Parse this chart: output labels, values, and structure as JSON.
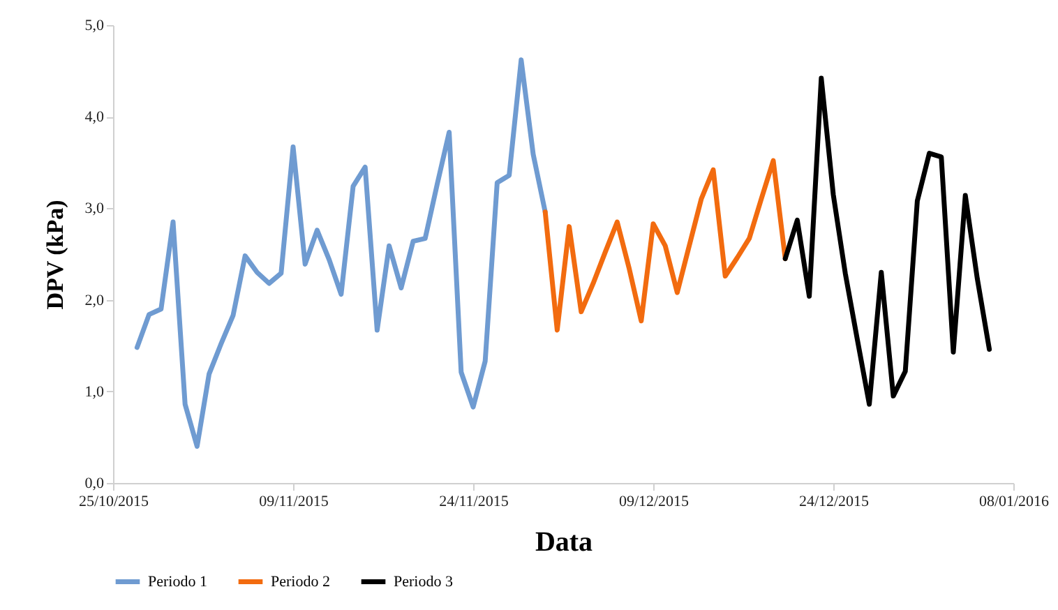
{
  "chart_data": {
    "type": "line",
    "xlabel": "Data",
    "ylabel": "DPV (kPa)",
    "xlim": [
      "2015-10-25",
      "2016-01-08"
    ],
    "xticks": [
      {
        "value": "2015-10-25",
        "label": "25/10/2015"
      },
      {
        "value": "2015-11-09",
        "label": "09/11/2015"
      },
      {
        "value": "2015-11-24",
        "label": "24/11/2015"
      },
      {
        "value": "2015-12-09",
        "label": "09/12/2015"
      },
      {
        "value": "2015-12-24",
        "label": "24/12/2015"
      },
      {
        "value": "2016-01-08",
        "label": "08/01/2016"
      }
    ],
    "ylim": [
      0,
      5
    ],
    "yticks": [
      {
        "value": 0,
        "label": "0,0"
      },
      {
        "value": 1,
        "label": "1,0"
      },
      {
        "value": 2,
        "label": "2,0"
      },
      {
        "value": 3,
        "label": "3,0"
      },
      {
        "value": 4,
        "label": "4,0"
      },
      {
        "value": 5,
        "label": "5,0"
      }
    ],
    "grid": false,
    "legend": "bottom",
    "series": [
      {
        "name": "Periodo 1",
        "color": "#6f9bd1",
        "x": [
          "2015-10-27",
          "2015-10-28",
          "2015-10-29",
          "2015-10-30",
          "2015-10-31",
          "2015-11-01",
          "2015-11-02",
          "2015-11-03",
          "2015-11-04",
          "2015-11-05",
          "2015-11-06",
          "2015-11-07",
          "2015-11-08",
          "2015-11-09",
          "2015-11-10",
          "2015-11-11",
          "2015-11-12",
          "2015-11-13",
          "2015-11-14",
          "2015-11-15",
          "2015-11-16",
          "2015-11-17",
          "2015-11-18",
          "2015-11-19",
          "2015-11-20",
          "2015-11-21",
          "2015-11-22",
          "2015-11-23",
          "2015-11-24",
          "2015-11-25",
          "2015-11-26",
          "2015-11-27",
          "2015-11-28",
          "2015-11-29",
          "2015-11-30"
        ],
        "values": [
          1.48,
          1.84,
          1.9,
          2.85,
          0.86,
          0.4,
          1.19,
          1.52,
          1.83,
          2.48,
          2.3,
          2.18,
          2.29,
          3.67,
          2.39,
          2.76,
          2.44,
          2.06,
          3.24,
          3.45,
          1.67,
          2.59,
          2.13,
          2.64,
          2.67,
          3.26,
          3.83,
          1.21,
          0.83,
          1.33,
          3.28,
          3.36,
          4.62,
          3.59,
          2.96
        ]
      },
      {
        "name": "Periodo 2",
        "color": "#f26b0f",
        "x": [
          "2015-11-30",
          "2015-12-01",
          "2015-12-02",
          "2015-12-03",
          "2015-12-04",
          "2015-12-05",
          "2015-12-06",
          "2015-12-07",
          "2015-12-08",
          "2015-12-09",
          "2015-12-10",
          "2015-12-11",
          "2015-12-12",
          "2015-12-13",
          "2015-12-14",
          "2015-12-15",
          "2015-12-16",
          "2015-12-17",
          "2015-12-18",
          "2015-12-19",
          "2015-12-20"
        ],
        "values": [
          2.96,
          1.67,
          2.8,
          1.87,
          2.18,
          2.52,
          2.85,
          2.34,
          1.77,
          2.83,
          2.59,
          2.08,
          2.59,
          3.1,
          3.42,
          2.26,
          2.46,
          2.67,
          3.1,
          3.52,
          2.45
        ]
      },
      {
        "name": "Periodo 3",
        "color": "#000000",
        "x": [
          "2015-12-20",
          "2015-12-21",
          "2015-12-22",
          "2015-12-23",
          "2015-12-24",
          "2015-12-25",
          "2015-12-26",
          "2015-12-27",
          "2015-12-28",
          "2015-12-29",
          "2015-12-30",
          "2015-12-31",
          "2016-01-01",
          "2016-01-02",
          "2016-01-03",
          "2016-01-04",
          "2016-01-05",
          "2016-01-06"
        ],
        "values": [
          2.45,
          2.87,
          2.04,
          4.42,
          3.15,
          2.29,
          1.57,
          0.86,
          2.3,
          0.95,
          1.22,
          3.08,
          3.6,
          3.56,
          1.43,
          3.14,
          2.23,
          1.46
        ]
      }
    ]
  }
}
